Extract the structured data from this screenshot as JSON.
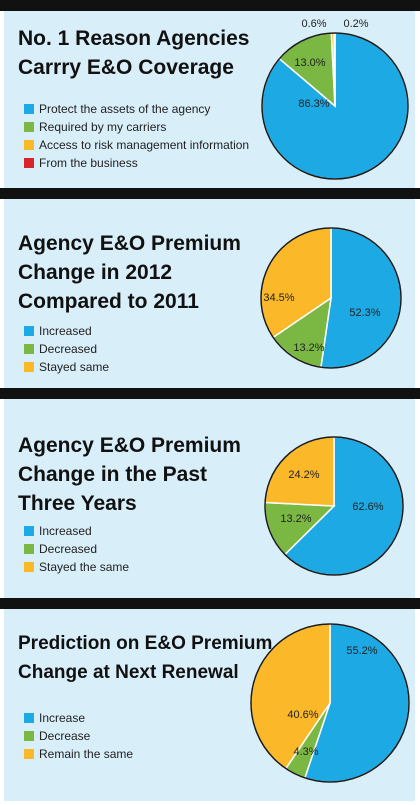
{
  "colors": {
    "blue": "#1da9e3",
    "green": "#7ab843",
    "yellow": "#fbb829",
    "red": "#d7262b",
    "border": "#1a1a1a",
    "background": "#d8eef9"
  },
  "chart_data": [
    {
      "type": "pie",
      "title_lines": [
        "No. 1 Reason Agencies",
        "Carrry E&O Coverage"
      ],
      "categories": [
        "Protect the assets of the agency",
        "Required by my carriers",
        "Access to risk management information",
        "From the business"
      ],
      "values": [
        86.3,
        13.0,
        0.6,
        0.2
      ],
      "value_labels": [
        "86.3%",
        "13.0%",
        "0.6%",
        "0.2%"
      ],
      "colors": [
        "#1da9e3",
        "#7ab843",
        "#fbb829",
        "#d7262b"
      ]
    },
    {
      "type": "pie",
      "title_lines": [
        "Agency E&O Premium",
        "Change in 2012",
        "Compared to 2011"
      ],
      "categories": [
        "Increased",
        "Decreased",
        "Stayed same"
      ],
      "values": [
        52.3,
        13.2,
        34.5
      ],
      "value_labels": [
        "52.3%",
        "13.2%",
        "34.5%"
      ],
      "colors": [
        "#1da9e3",
        "#7ab843",
        "#fbb829"
      ]
    },
    {
      "type": "pie",
      "title_lines": [
        "Agency E&O Premium",
        "Change in the Past",
        "Three Years"
      ],
      "categories": [
        "Increased",
        "Decreased",
        "Stayed the same"
      ],
      "values": [
        62.6,
        13.2,
        24.2
      ],
      "value_labels": [
        "62.6%",
        "13.2%",
        "24.2%"
      ],
      "colors": [
        "#1da9e3",
        "#7ab843",
        "#fbb829"
      ]
    },
    {
      "type": "pie",
      "title_lines": [
        "Prediction on E&O Premium",
        "Change at Next Renewal"
      ],
      "categories": [
        "Increase",
        "Decrease",
        "Remain the same"
      ],
      "values": [
        55.2,
        4.3,
        40.6
      ],
      "value_labels": [
        "55.2%",
        "4.3%",
        "40.6%"
      ],
      "colors": [
        "#1da9e3",
        "#7ab843",
        "#fbb829"
      ]
    }
  ]
}
